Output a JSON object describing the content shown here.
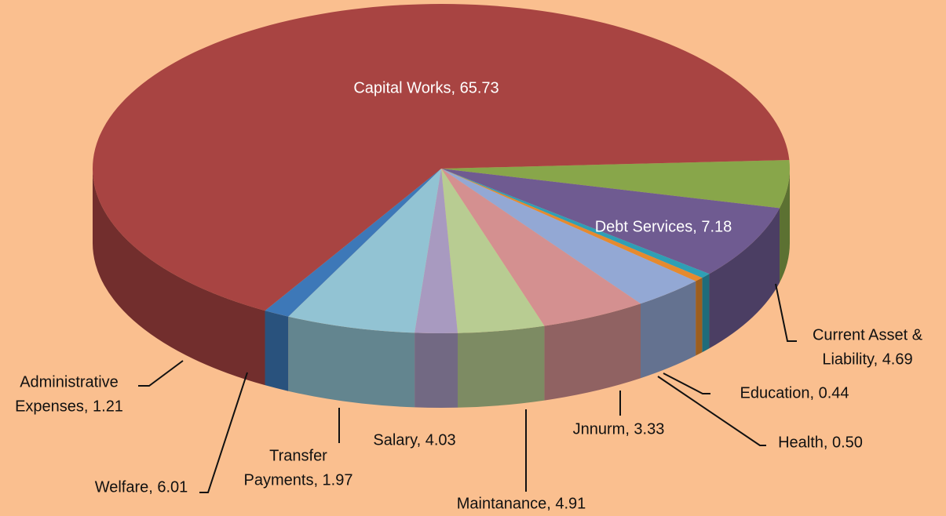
{
  "chart_data": {
    "type": "pie",
    "data_labels": [
      [
        "Current Asset &",
        "Liability, 4.69"
      ],
      [
        "Debt  Services, 7.18"
      ],
      [
        "Health, 0.50"
      ],
      [
        "Education, 0.44"
      ],
      [
        "Jnnurm, 3.33"
      ],
      [
        "Maintanance, 4.91"
      ],
      [
        "Salary, 4.03"
      ],
      [
        "Transfer",
        "Payments, 1.97"
      ],
      [
        "Welfare, 6.01"
      ],
      [
        "Administrative",
        "Expenses, 1.21"
      ],
      [
        "Capital Works, 65.73"
      ]
    ],
    "values": [
      4.69,
      7.18,
      0.5,
      0.44,
      3.33,
      4.91,
      4.03,
      1.97,
      6.01,
      1.21,
      65.73
    ],
    "colors": [
      "#88a64a",
      "#6f5b91",
      "#2f9fb5",
      "#e68a2e",
      "#93a8d4",
      "#d49090",
      "#b8cc92",
      "#a89ac0",
      "#92c3d3",
      "#3d78b8",
      "#a84442"
    ]
  }
}
